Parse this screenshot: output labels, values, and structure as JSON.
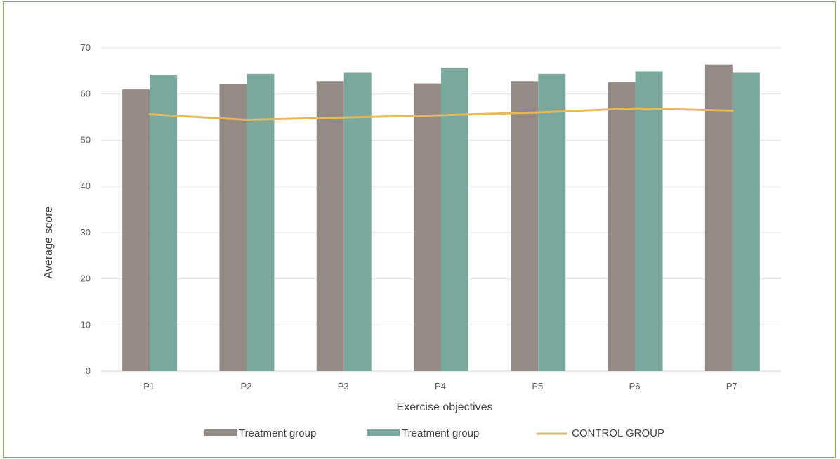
{
  "chart_data": {
    "type": "bar",
    "title": "",
    "xlabel": "Exercise objectives",
    "ylabel": "Average score",
    "categories": [
      "P1",
      "P2",
      "P3",
      "P4",
      "P5",
      "P6",
      "P7"
    ],
    "ylim": [
      0,
      70
    ],
    "yticks": [
      0,
      10,
      20,
      30,
      40,
      50,
      60,
      70
    ],
    "grid": true,
    "legend_position": "bottom",
    "series": [
      {
        "name": "Treatment group",
        "kind": "bar",
        "color": "#948a86",
        "values": [
          61.0,
          62.1,
          62.8,
          62.3,
          62.8,
          62.6,
          66.4
        ]
      },
      {
        "name": "Treatment group",
        "kind": "bar",
        "color": "#7aa89c",
        "values": [
          64.2,
          64.4,
          64.6,
          65.6,
          64.4,
          64.9,
          64.6
        ]
      },
      {
        "name": "CONTROL GROUP",
        "kind": "line",
        "color": "#e3b95c",
        "values": [
          55.6,
          54.4,
          54.9,
          55.4,
          56.0,
          56.9,
          56.4
        ]
      }
    ]
  }
}
